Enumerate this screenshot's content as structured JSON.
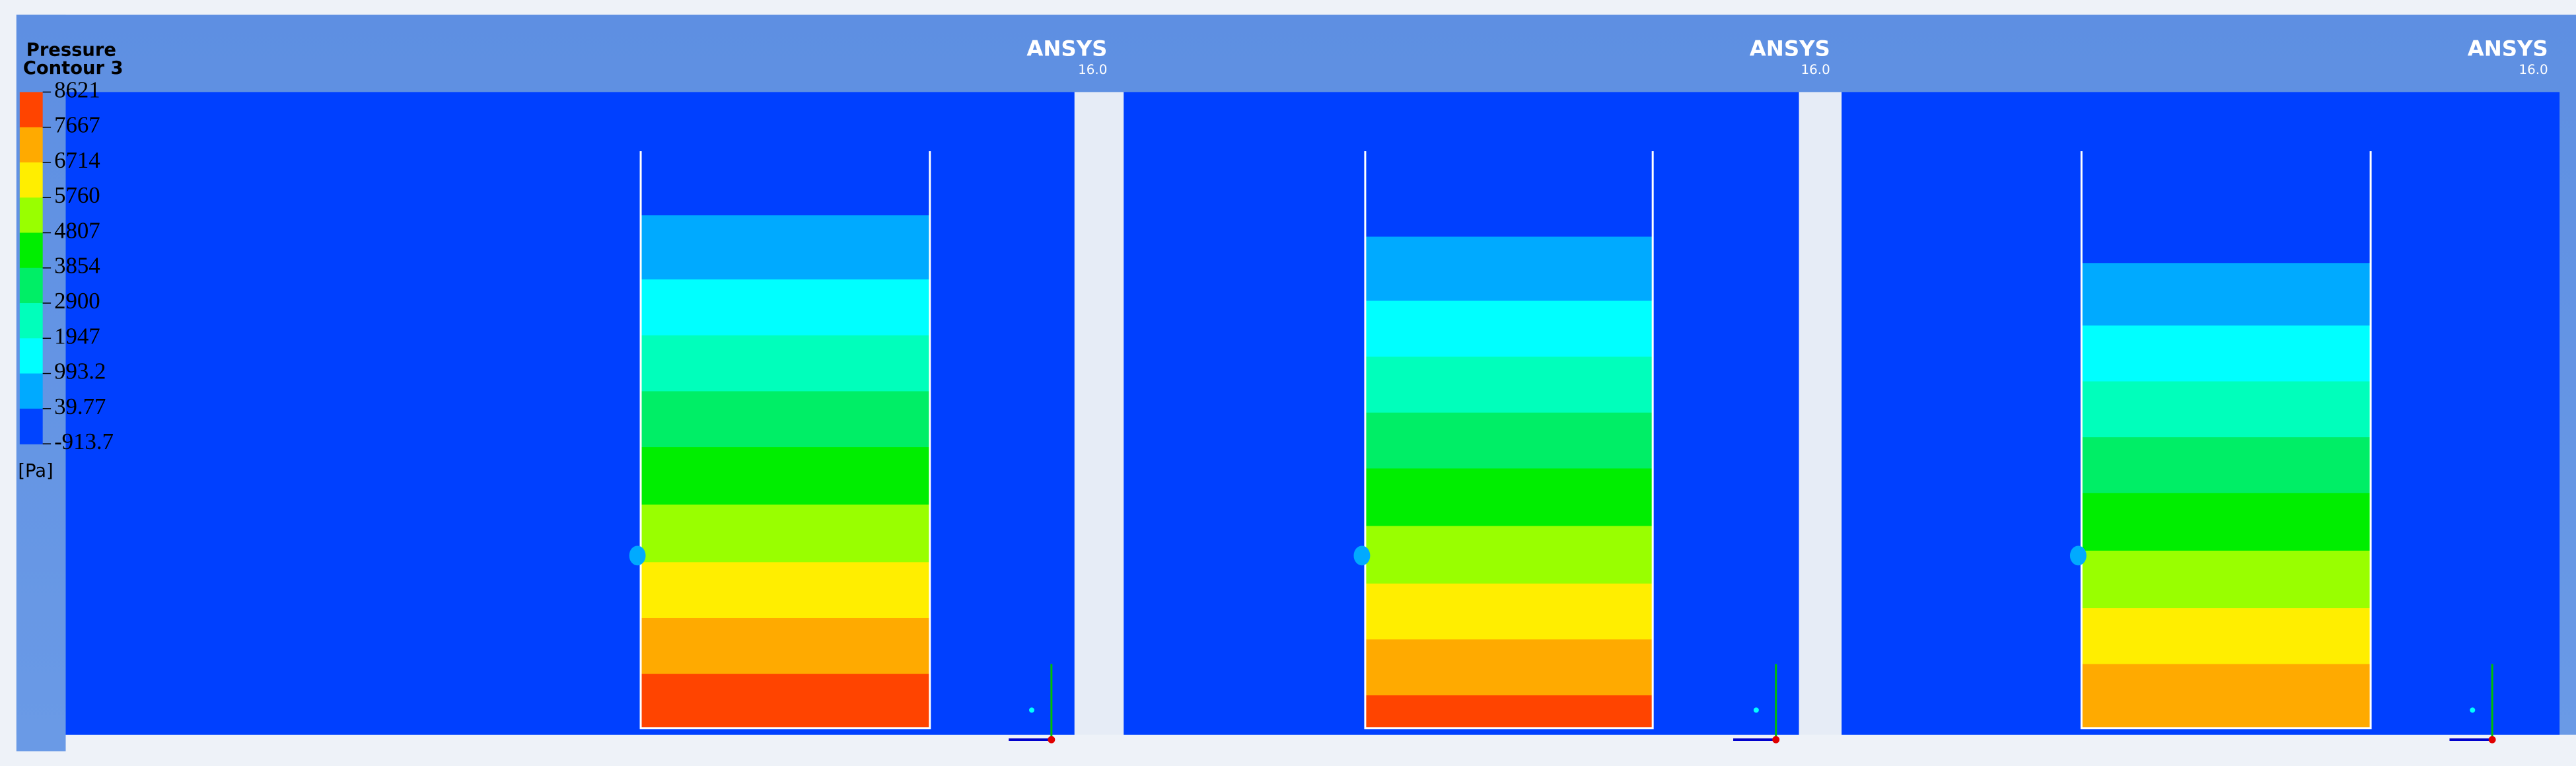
{
  "legend": {
    "title": [
      "Pressure",
      "Contour 3"
    ],
    "labels": [
      "8621",
      "7667",
      "6714",
      "5760",
      "4807",
      "3854",
      "2900",
      "1947",
      "993.2",
      "39.77",
      "-913.7"
    ],
    "colors": [
      "#ff4400",
      "#ffaa00",
      "#ffee00",
      "#99ff00",
      "#00ee00",
      "#00ee66",
      "#00ffbb",
      "#00ffff",
      "#00aaff",
      "#0044ff"
    ],
    "unit": "[Pa]"
  },
  "panels": [
    {
      "brand": "ANSYS",
      "version": "16.0"
    },
    {
      "brand": "ANSYS",
      "version": "16.0"
    },
    {
      "brand": "ANSYS",
      "version": "16.0"
    }
  ]
}
